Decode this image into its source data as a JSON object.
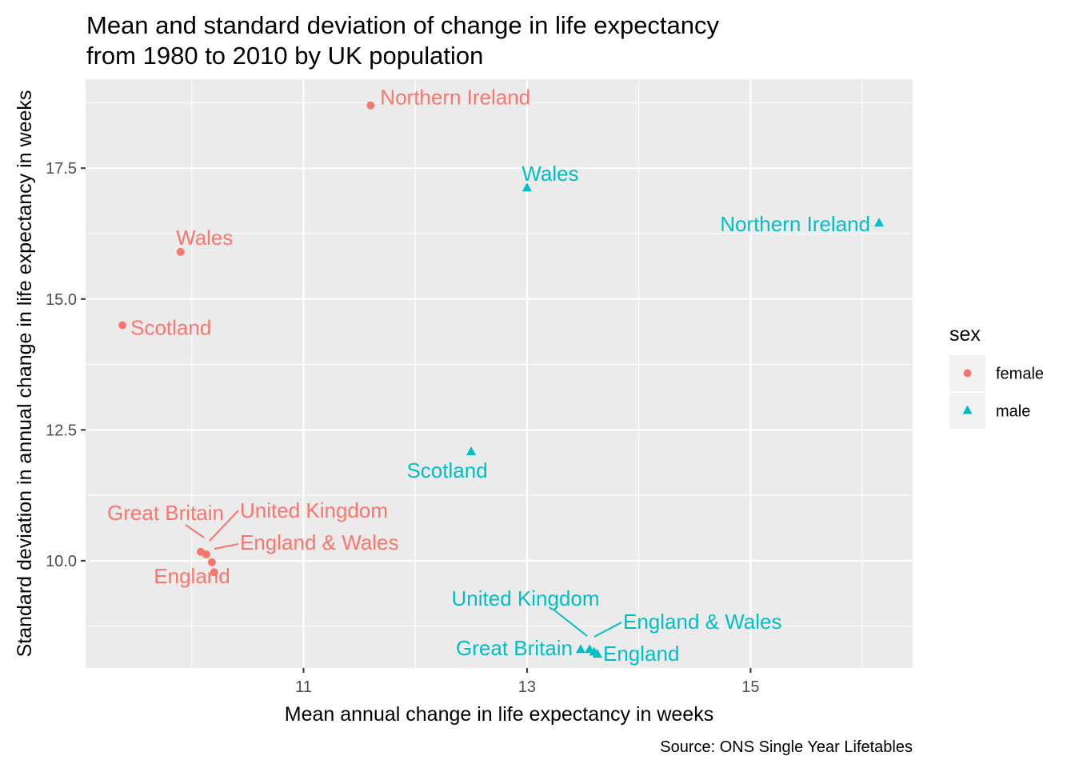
{
  "chart_data": {
    "type": "scatter",
    "title": [
      "Mean and standard deviation of change in life expectancy",
      "from 1980 to 2010 by UK population"
    ],
    "xlabel": "Mean annual change in life expectancy in weeks",
    "ylabel": "Standard deviation in annual change in life expectancy in weeks",
    "caption": "Source: ONS Single Year Lifetables",
    "xlim": [
      9.05,
      16.45
    ],
    "ylim": [
      7.95,
      19.2
    ],
    "x_ticks": [
      11,
      13,
      15
    ],
    "x_tick_labels": [
      "11",
      "13",
      "15"
    ],
    "y_ticks": [
      10.0,
      12.5,
      15.0,
      17.5
    ],
    "y_tick_labels": [
      "10.0",
      "12.5",
      "15.0",
      "17.5"
    ],
    "grid": true,
    "legend": {
      "title": "sex",
      "position": "right",
      "entries": [
        {
          "label": "female",
          "shape": "circle",
          "color": "#F8766D"
        },
        {
          "label": "male",
          "shape": "triangle",
          "color": "#00BFC4"
        }
      ]
    },
    "colors": {
      "panel_bg": "#EBEBEB",
      "grid": "#FFFFFF",
      "female": "#F8766D",
      "male": "#00BFC4"
    },
    "series": [
      {
        "name": "female",
        "points": [
          {
            "label": "Northern Ireland",
            "x": 11.6,
            "y": 18.7
          },
          {
            "label": "Wales",
            "x": 9.9,
            "y": 15.9
          },
          {
            "label": "Scotland",
            "x": 9.38,
            "y": 14.5
          },
          {
            "label": "Great Britain",
            "x": 10.08,
            "y": 10.17
          },
          {
            "label": "United Kingdom",
            "x": 10.13,
            "y": 10.12
          },
          {
            "label": "England & Wales",
            "x": 10.18,
            "y": 9.97
          },
          {
            "label": "England",
            "x": 10.2,
            "y": 9.78
          }
        ]
      },
      {
        "name": "male",
        "points": [
          {
            "label": "Wales",
            "x": 13.0,
            "y": 17.12
          },
          {
            "label": "Northern Ireland",
            "x": 16.15,
            "y": 16.45
          },
          {
            "label": "Scotland",
            "x": 12.5,
            "y": 12.08
          },
          {
            "label": "Great Britain",
            "x": 13.48,
            "y": 8.3
          },
          {
            "label": "United Kingdom",
            "x": 13.56,
            "y": 8.3
          },
          {
            "label": "England & Wales",
            "x": 13.6,
            "y": 8.25
          },
          {
            "label": "England",
            "x": 13.63,
            "y": 8.21
          }
        ]
      }
    ]
  }
}
